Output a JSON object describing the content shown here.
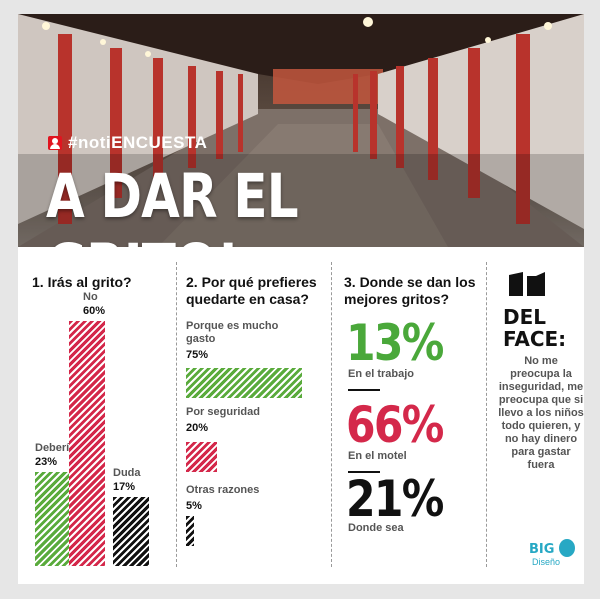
{
  "header": {
    "tag": "#notiENCUESTA",
    "headline": "A DAR EL GRITO!"
  },
  "q1": {
    "title": "1. Irás al grito?"
  },
  "q2": {
    "title": "2. Por qué prefieres quedarte en casa?"
  },
  "q3": {
    "title": "3. Donde se dan los mejores gritos?",
    "items": [
      {
        "value": "13%",
        "label": "En el trabajo",
        "color": "#4aa83a"
      },
      {
        "value": "66%",
        "label": "En el motel",
        "color": "#d4284a"
      },
      {
        "value": "21%",
        "label": "Donde sea",
        "color": "#111111"
      }
    ]
  },
  "face": {
    "title_line1": "DEL",
    "title_line2": "FACE:",
    "body": "No me preocupa la inseguridad, me preocupa que si llevo a los niños todo quieren, y no hay dinero para gastar fuera"
  },
  "logo": {
    "name": "BIG",
    "sub": "Diseño"
  },
  "colors": {
    "green": "#5aab3c",
    "red": "#d4284a",
    "black": "#111111"
  },
  "chart_data": [
    {
      "type": "bar",
      "title": "1. Irás al grito?",
      "categories": [
        "Debería",
        "No",
        "Duda"
      ],
      "values": [
        23,
        60,
        17
      ],
      "value_labels": [
        "23%",
        "60%",
        "17%"
      ],
      "colors": [
        "#5aab3c",
        "#d4284a",
        "#111111"
      ],
      "orientation": "vertical",
      "ylim": [
        0,
        60
      ]
    },
    {
      "type": "bar",
      "title": "2. Por qué prefieres quedarte en casa?",
      "categories": [
        "Porque es mucho gasto",
        "Por seguridad",
        "Otras razones"
      ],
      "values": [
        75,
        20,
        5
      ],
      "value_labels": [
        "75%",
        "20%",
        "5%"
      ],
      "colors": [
        "#5aab3c",
        "#d4284a",
        "#111111"
      ],
      "orientation": "horizontal",
      "xlim": [
        0,
        75
      ]
    }
  ]
}
